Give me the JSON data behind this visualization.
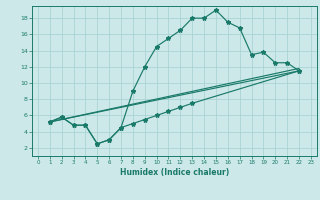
{
  "title": "",
  "xlabel": "Humidex (Indice chaleur)",
  "xlim": [
    -0.5,
    23.5
  ],
  "ylim": [
    1.0,
    19.5
  ],
  "xticks": [
    0,
    1,
    2,
    3,
    4,
    5,
    6,
    7,
    8,
    9,
    10,
    11,
    12,
    13,
    14,
    15,
    16,
    17,
    18,
    19,
    20,
    21,
    22,
    23
  ],
  "yticks": [
    2,
    4,
    6,
    8,
    10,
    12,
    14,
    16,
    18
  ],
  "bg_color": "#cce8e8",
  "line_color": "#1a7a6a",
  "grid_color": "#aad4d4",
  "line_main": {
    "x": [
      1,
      2,
      3,
      4,
      5,
      6,
      7,
      8,
      9,
      10,
      11,
      12,
      13,
      14,
      15,
      16,
      17,
      18,
      19,
      20,
      21,
      22
    ],
    "y": [
      5.2,
      5.8,
      4.8,
      4.8,
      2.5,
      3.0,
      4.5,
      9.0,
      12.0,
      14.5,
      15.5,
      16.5,
      18.0,
      18.0,
      19.0,
      17.5,
      16.8,
      13.5,
      13.8,
      12.5,
      12.5,
      11.5
    ]
  },
  "line_lower1": {
    "x": [
      1,
      2,
      3,
      4,
      5,
      6,
      7,
      8,
      9,
      10,
      11,
      12,
      13,
      22
    ],
    "y": [
      5.2,
      5.8,
      4.8,
      4.8,
      2.5,
      3.0,
      4.5,
      5.0,
      5.5,
      6.0,
      6.5,
      7.0,
      7.5,
      11.5
    ]
  },
  "line_lower2": {
    "x": [
      1,
      22
    ],
    "y": [
      5.2,
      11.5
    ]
  },
  "line_lower3": {
    "x": [
      1,
      22
    ],
    "y": [
      5.2,
      11.8
    ]
  }
}
